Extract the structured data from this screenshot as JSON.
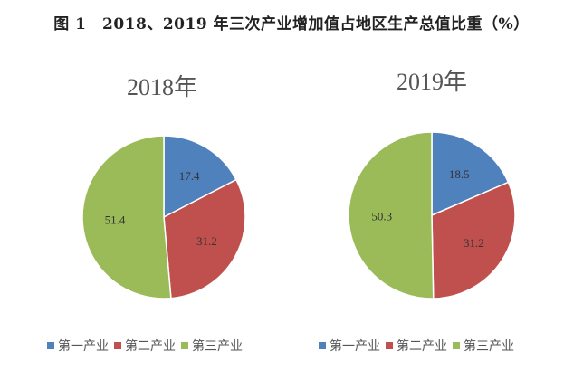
{
  "chart_data": [
    {
      "type": "pie",
      "title": "2018年",
      "categories": [
        "第一产业",
        "第二产业",
        "第三产业"
      ],
      "values": [
        17.4,
        31.2,
        51.4
      ],
      "colors": [
        "#4F81BD",
        "#C0504D",
        "#9BBB59"
      ],
      "legend": "bottom"
    },
    {
      "type": "pie",
      "title": "2019年",
      "categories": [
        "第一产业",
        "第二产业",
        "第三产业"
      ],
      "values": [
        18.5,
        31.2,
        50.3
      ],
      "colors": [
        "#4F81BD",
        "#C0504D",
        "#9BBB59"
      ],
      "legend": "bottom"
    }
  ],
  "figure_title": "图 1　2018、2019 年三次产业增加值占地区生产总值比重（%）"
}
